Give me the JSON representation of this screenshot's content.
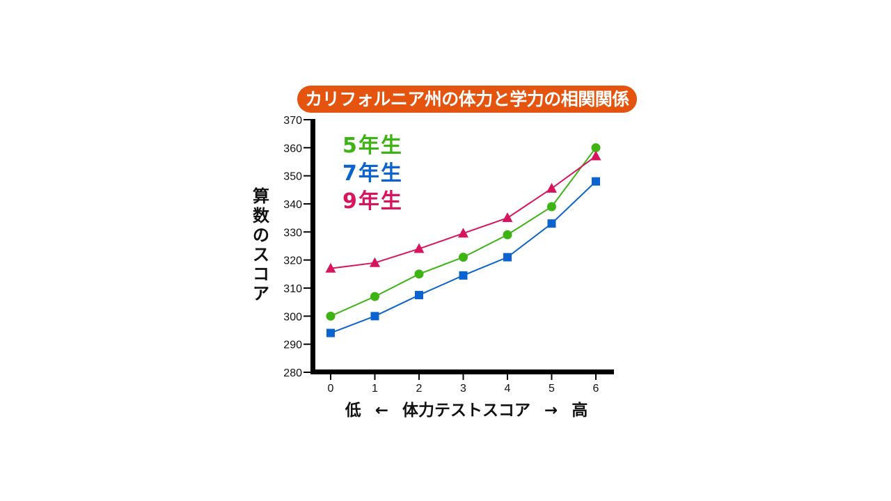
{
  "title": "カリフォルニア州の体力と学力の相関関係",
  "colors": {
    "title_bg": "#E4540E",
    "grade5": "#3DB314",
    "grade7": "#0A63CE",
    "grade9": "#D9145F",
    "axis": "#000000"
  },
  "axis": {
    "ylabel_chars": [
      "算",
      "数",
      "の",
      "ス",
      "コ",
      "ア"
    ],
    "ylabel": "算数のスコア",
    "xlabel": {
      "low": "低",
      "left_arrow": "←",
      "center": "体力テストスコア",
      "right_arrow": "→",
      "high": "高"
    }
  },
  "legend": [
    {
      "label": "5年生",
      "color": "#3DB314"
    },
    {
      "label": "7年生",
      "color": "#0A63CE"
    },
    {
      "label": "9年生",
      "color": "#D9145F"
    }
  ],
  "chart_data": {
    "type": "line",
    "title": "カリフォルニア州の体力と学力の相関関係",
    "xlabel": "低 ← 体力テストスコア → 高",
    "ylabel": "算数のスコア",
    "x": [
      0,
      1,
      2,
      3,
      4,
      5,
      6
    ],
    "xticks": [
      "0",
      "1",
      "2",
      "3",
      "4",
      "5",
      "6"
    ],
    "yticks": [
      280,
      290,
      300,
      310,
      320,
      330,
      340,
      350,
      360,
      370
    ],
    "ylim": [
      280,
      370
    ],
    "grid": false,
    "legend_position": "upper-left (inside plot)",
    "series": [
      {
        "name": "5年生",
        "marker": "circle",
        "color": "#3DB314",
        "values": [
          300,
          307,
          315,
          321,
          329,
          339,
          360
        ]
      },
      {
        "name": "7年生",
        "marker": "square",
        "color": "#0A63CE",
        "values": [
          294,
          300,
          307.5,
          314.5,
          321,
          333,
          348
        ]
      },
      {
        "name": "9年生",
        "marker": "triangle",
        "color": "#D9145F",
        "values": [
          317,
          319,
          324,
          329.5,
          335,
          345.5,
          357
        ]
      }
    ]
  }
}
